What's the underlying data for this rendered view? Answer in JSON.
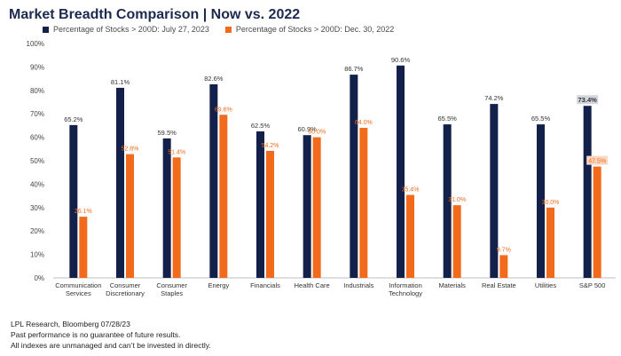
{
  "title": "Market Breadth Comparison | Now vs. 2022",
  "colors": {
    "now": "#13204a",
    "then": "#f26b1d",
    "title": "#1b2a4e",
    "highlight_now": "#d3d6dd",
    "highlight_then": "#f9d7c3"
  },
  "legend": [
    {
      "label": "Percentage of Stocks > 200D: July 27, 2023",
      "color": "#13204a"
    },
    {
      "label": "Percentage of Stocks > 200D: Dec. 30, 2022",
      "color": "#f26b1d"
    }
  ],
  "chart_data": {
    "type": "bar",
    "title": "Market Breadth Comparison | Now vs. 2022",
    "categories": [
      [
        "Communication",
        "Services"
      ],
      [
        "Consumer",
        "Discretionary"
      ],
      [
        "Consumer",
        "Staples"
      ],
      [
        "Energy"
      ],
      [
        "Financials"
      ],
      [
        "Health Care"
      ],
      [
        "Industrials"
      ],
      [
        "Information",
        "Technology"
      ],
      [
        "Materials"
      ],
      [
        "Real Estate"
      ],
      [
        "Utilities"
      ],
      [
        "S&P 500"
      ]
    ],
    "series": [
      {
        "name": "Percentage of Stocks > 200D: July 27, 2023",
        "values": [
          65.2,
          81.1,
          59.5,
          82.6,
          62.5,
          60.9,
          86.7,
          90.6,
          65.5,
          74.2,
          65.5,
          73.4
        ],
        "labels": [
          "65.2%",
          "81.1%",
          "59.5%",
          "82.6%",
          "62.5%",
          "60.9%",
          "86.7%",
          "90.6%",
          "65.5%",
          "74.2%",
          "65.5%",
          "73.4%"
        ]
      },
      {
        "name": "Percentage of Stocks > 200D: Dec. 30, 2022",
        "values": [
          26.1,
          52.8,
          51.4,
          69.6,
          54.2,
          60.0,
          64.0,
          35.4,
          31.0,
          9.7,
          30.0,
          47.5
        ],
        "labels": [
          "26.1%",
          "52.8%",
          "51.4%",
          "69.6%",
          "54.2%",
          "60.0%",
          "64.0%",
          "35.4%",
          "31.0%",
          "9.7%",
          "30.0%",
          "47.5%"
        ]
      }
    ],
    "ylim": [
      0,
      100
    ],
    "yticks": [
      "0%",
      "10%",
      "20%",
      "30%",
      "40%",
      "50%",
      "60%",
      "70%",
      "80%",
      "90%",
      "100%"
    ],
    "highlighted_category": "S&P 500",
    "grid": false,
    "legend_position": "top-left"
  },
  "footnotes": [
    "LPL Research, Bloomberg 07/28/23",
    "Past performance is no guarantee of future results.",
    "All indexes are unmanaged and can’t be invested in directly."
  ]
}
